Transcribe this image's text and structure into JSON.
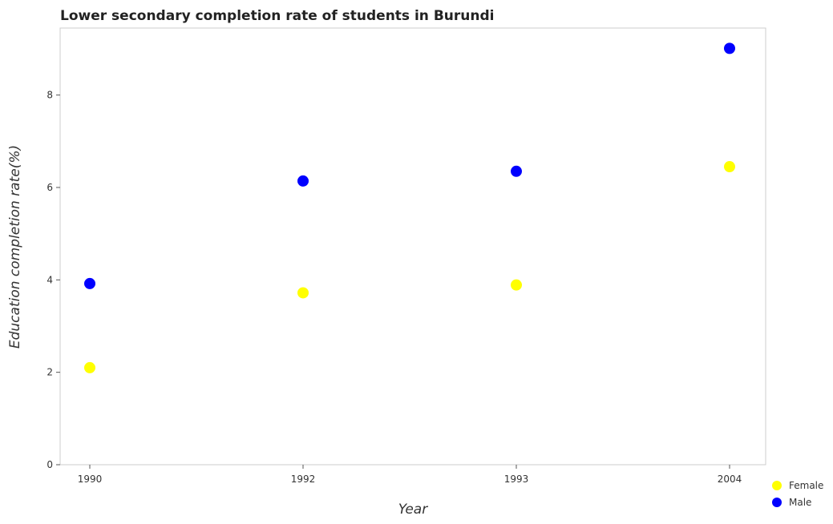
{
  "chart_data": {
    "type": "scatter",
    "title": "Lower secondary completion rate of students in Burundi",
    "xlabel": "Year",
    "ylabel": "Education completion rate(%)",
    "categories": [
      "1990",
      "1992",
      "1993",
      "2004"
    ],
    "y_ticks": [
      "0",
      "2",
      "4",
      "6",
      "8"
    ],
    "ylim": [
      0,
      9.45
    ],
    "grid": false,
    "legend_position": "bottom-right",
    "series": [
      {
        "name": "Female",
        "color": "#ffff00",
        "values": [
          2.1,
          3.72,
          3.89,
          6.45
        ]
      },
      {
        "name": "Male",
        "color": "#0000ff",
        "values": [
          3.92,
          6.14,
          6.35,
          9.01
        ]
      }
    ]
  }
}
